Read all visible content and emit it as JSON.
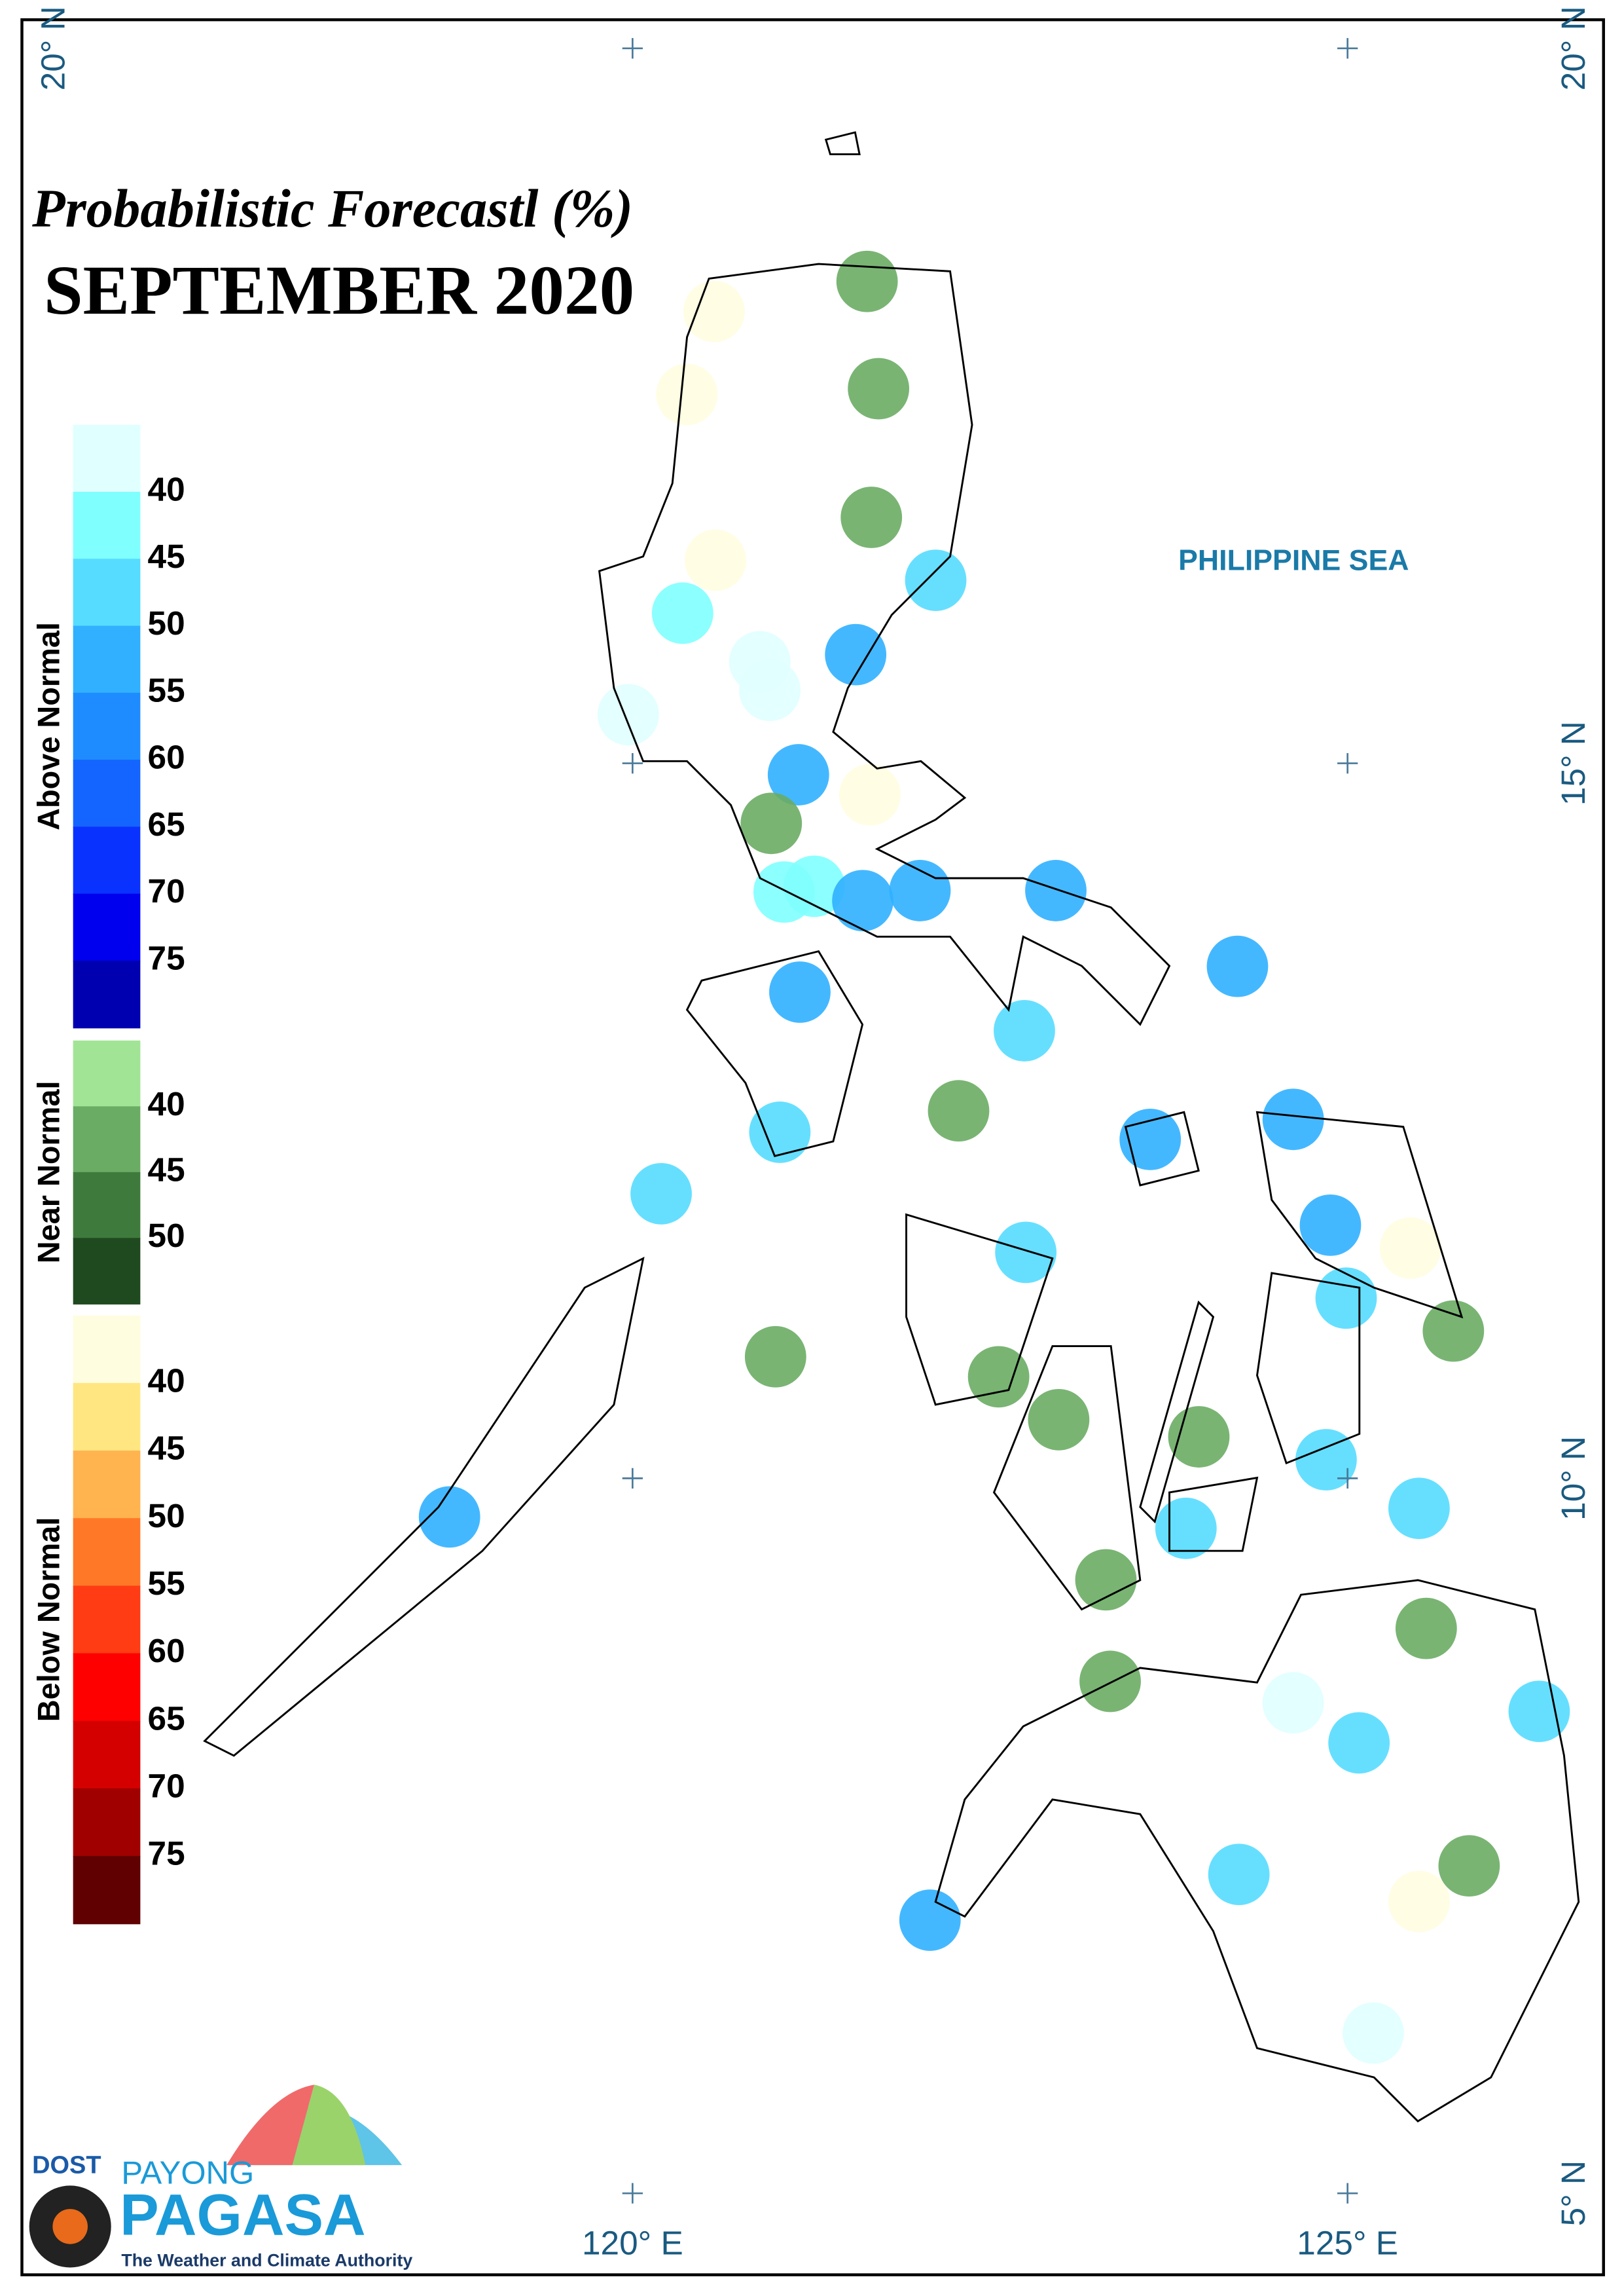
{
  "chart_data": {
    "type": "map",
    "title": "Probabilistic Forecastl (%)",
    "subtitle": "SEPTEMBER 2020",
    "sea_label": "PHILIPPINE SEA",
    "xlim": [
      115.73,
      126.79
    ],
    "ylim": [
      4.43,
      20.2
    ],
    "xticks": [
      {
        "value": 120,
        "label": "120° E"
      },
      {
        "value": 125,
        "label": "125° E"
      }
    ],
    "yticks": [
      {
        "value": 20,
        "label": "20° N"
      },
      {
        "value": 15,
        "label": "15° N"
      },
      {
        "value": 10,
        "label": "10° N"
      },
      {
        "value": 5,
        "label": "5° N"
      }
    ],
    "legend": [
      {
        "name": "Above Normal",
        "key": "above",
        "colors": [
          "#e0ffff",
          "#80ffff",
          "#55dcff",
          "#30b0ff",
          "#1e8cff",
          "#1464ff",
          "#0a32ff",
          "#0000ee",
          "#0000b0"
        ],
        "ticks": [
          40,
          45,
          50,
          55,
          60,
          65,
          70,
          75
        ]
      },
      {
        "name": "Near Normal",
        "key": "near",
        "colors": [
          "#a2e496",
          "#6aac64",
          "#3f7a3d",
          "#1f4a1f"
        ],
        "ticks": [
          40,
          45,
          50
        ]
      },
      {
        "name": "Below Normal",
        "key": "below",
        "colors": [
          "#fffde0",
          "#ffe680",
          "#ffb450",
          "#ff7828",
          "#ff3c14",
          "#ff0000",
          "#d40000",
          "#a00000",
          "#600000"
        ],
        "ticks": [
          40,
          45,
          50,
          55,
          60,
          65,
          70,
          75
        ]
      }
    ],
    "stations": [
      {
        "lon": 121.64,
        "lat": 18.37,
        "class": "near",
        "value": 42
      },
      {
        "lon": 120.57,
        "lat": 18.16,
        "class": "below",
        "value": 38
      },
      {
        "lon": 121.72,
        "lat": 17.62,
        "class": "near",
        "value": 42
      },
      {
        "lon": 120.38,
        "lat": 17.58,
        "class": "below",
        "value": 38
      },
      {
        "lon": 121.67,
        "lat": 16.72,
        "class": "near",
        "value": 42
      },
      {
        "lon": 120.58,
        "lat": 16.42,
        "class": "below",
        "value": 38
      },
      {
        "lon": 122.12,
        "lat": 16.28,
        "class": "above",
        "value": 47
      },
      {
        "lon": 120.35,
        "lat": 16.05,
        "class": "above",
        "value": 42
      },
      {
        "lon": 121.56,
        "lat": 15.76,
        "class": "above",
        "value": 52
      },
      {
        "lon": 120.89,
        "lat": 15.71,
        "class": "above",
        "value": 38
      },
      {
        "lon": 120.96,
        "lat": 15.51,
        "class": "above",
        "value": 38
      },
      {
        "lon": 119.97,
        "lat": 15.34,
        "class": "above",
        "value": 38
      },
      {
        "lon": 121.16,
        "lat": 14.92,
        "class": "above",
        "value": 52
      },
      {
        "lon": 121.66,
        "lat": 14.78,
        "class": "below",
        "value": 38
      },
      {
        "lon": 121.06,
        "lat": 14.1,
        "class": "above",
        "value": 42
      },
      {
        "lon": 121.27,
        "lat": 14.14,
        "class": "above",
        "value": 42
      },
      {
        "lon": 120.97,
        "lat": 14.58,
        "class": "near",
        "value": 42
      },
      {
        "lon": 121.61,
        "lat": 14.04,
        "class": "above",
        "value": 52
      },
      {
        "lon": 122.01,
        "lat": 14.11,
        "class": "above",
        "value": 52
      },
      {
        "lon": 122.96,
        "lat": 14.11,
        "class": "above",
        "value": 52
      },
      {
        "lon": 124.23,
        "lat": 13.58,
        "class": "above",
        "value": 52
      },
      {
        "lon": 121.17,
        "lat": 13.4,
        "class": "above",
        "value": 52
      },
      {
        "lon": 122.74,
        "lat": 13.13,
        "class": "above",
        "value": 47
      },
      {
        "lon": 122.28,
        "lat": 12.57,
        "class": "near",
        "value": 42
      },
      {
        "lon": 121.03,
        "lat": 12.42,
        "class": "above",
        "value": 47
      },
      {
        "lon": 123.62,
        "lat": 12.37,
        "class": "above",
        "value": 52
      },
      {
        "lon": 124.62,
        "lat": 12.51,
        "class": "above",
        "value": 52
      },
      {
        "lon": 120.2,
        "lat": 11.99,
        "class": "above",
        "value": 47
      },
      {
        "lon": 124.88,
        "lat": 11.77,
        "class": "above",
        "value": 52
      },
      {
        "lon": 125.44,
        "lat": 11.61,
        "class": "below",
        "value": 38
      },
      {
        "lon": 122.75,
        "lat": 11.58,
        "class": "above",
        "value": 47
      },
      {
        "lon": 124.99,
        "lat": 11.26,
        "class": "above",
        "value": 47
      },
      {
        "lon": 125.74,
        "lat": 11.03,
        "class": "near",
        "value": 42
      },
      {
        "lon": 121.0,
        "lat": 10.85,
        "class": "near",
        "value": 42
      },
      {
        "lon": 122.56,
        "lat": 10.71,
        "class": "near",
        "value": 42
      },
      {
        "lon": 122.98,
        "lat": 10.41,
        "class": "near",
        "value": 42
      },
      {
        "lon": 123.96,
        "lat": 10.29,
        "class": "near",
        "value": 42
      },
      {
        "lon": 124.85,
        "lat": 10.13,
        "class": "above",
        "value": 47
      },
      {
        "lon": 125.5,
        "lat": 9.79,
        "class": "above",
        "value": 47
      },
      {
        "lon": 118.72,
        "lat": 9.73,
        "class": "above",
        "value": 52
      },
      {
        "lon": 123.87,
        "lat": 9.65,
        "class": "above",
        "value": 47
      },
      {
        "lon": 123.31,
        "lat": 9.29,
        "class": "near",
        "value": 42
      },
      {
        "lon": 125.55,
        "lat": 8.95,
        "class": "near",
        "value": 42
      },
      {
        "lon": 123.34,
        "lat": 8.58,
        "class": "near",
        "value": 42
      },
      {
        "lon": 124.62,
        "lat": 8.43,
        "class": "above",
        "value": 38
      },
      {
        "lon": 126.34,
        "lat": 8.37,
        "class": "above",
        "value": 47
      },
      {
        "lon": 125.08,
        "lat": 8.15,
        "class": "above",
        "value": 47
      },
      {
        "lon": 124.24,
        "lat": 7.23,
        "class": "above",
        "value": 47
      },
      {
        "lon": 125.85,
        "lat": 7.29,
        "class": "near",
        "value": 42
      },
      {
        "lon": 125.5,
        "lat": 7.04,
        "class": "below",
        "value": 38
      },
      {
        "lon": 122.08,
        "lat": 6.91,
        "class": "above",
        "value": 52
      },
      {
        "lon": 125.18,
        "lat": 6.12,
        "class": "above",
        "value": 38
      }
    ]
  },
  "logo": {
    "agency": "DOST",
    "line1": "PAYONG",
    "line2": "PAGASA",
    "tagline": "The Weather and Climate Authority"
  }
}
